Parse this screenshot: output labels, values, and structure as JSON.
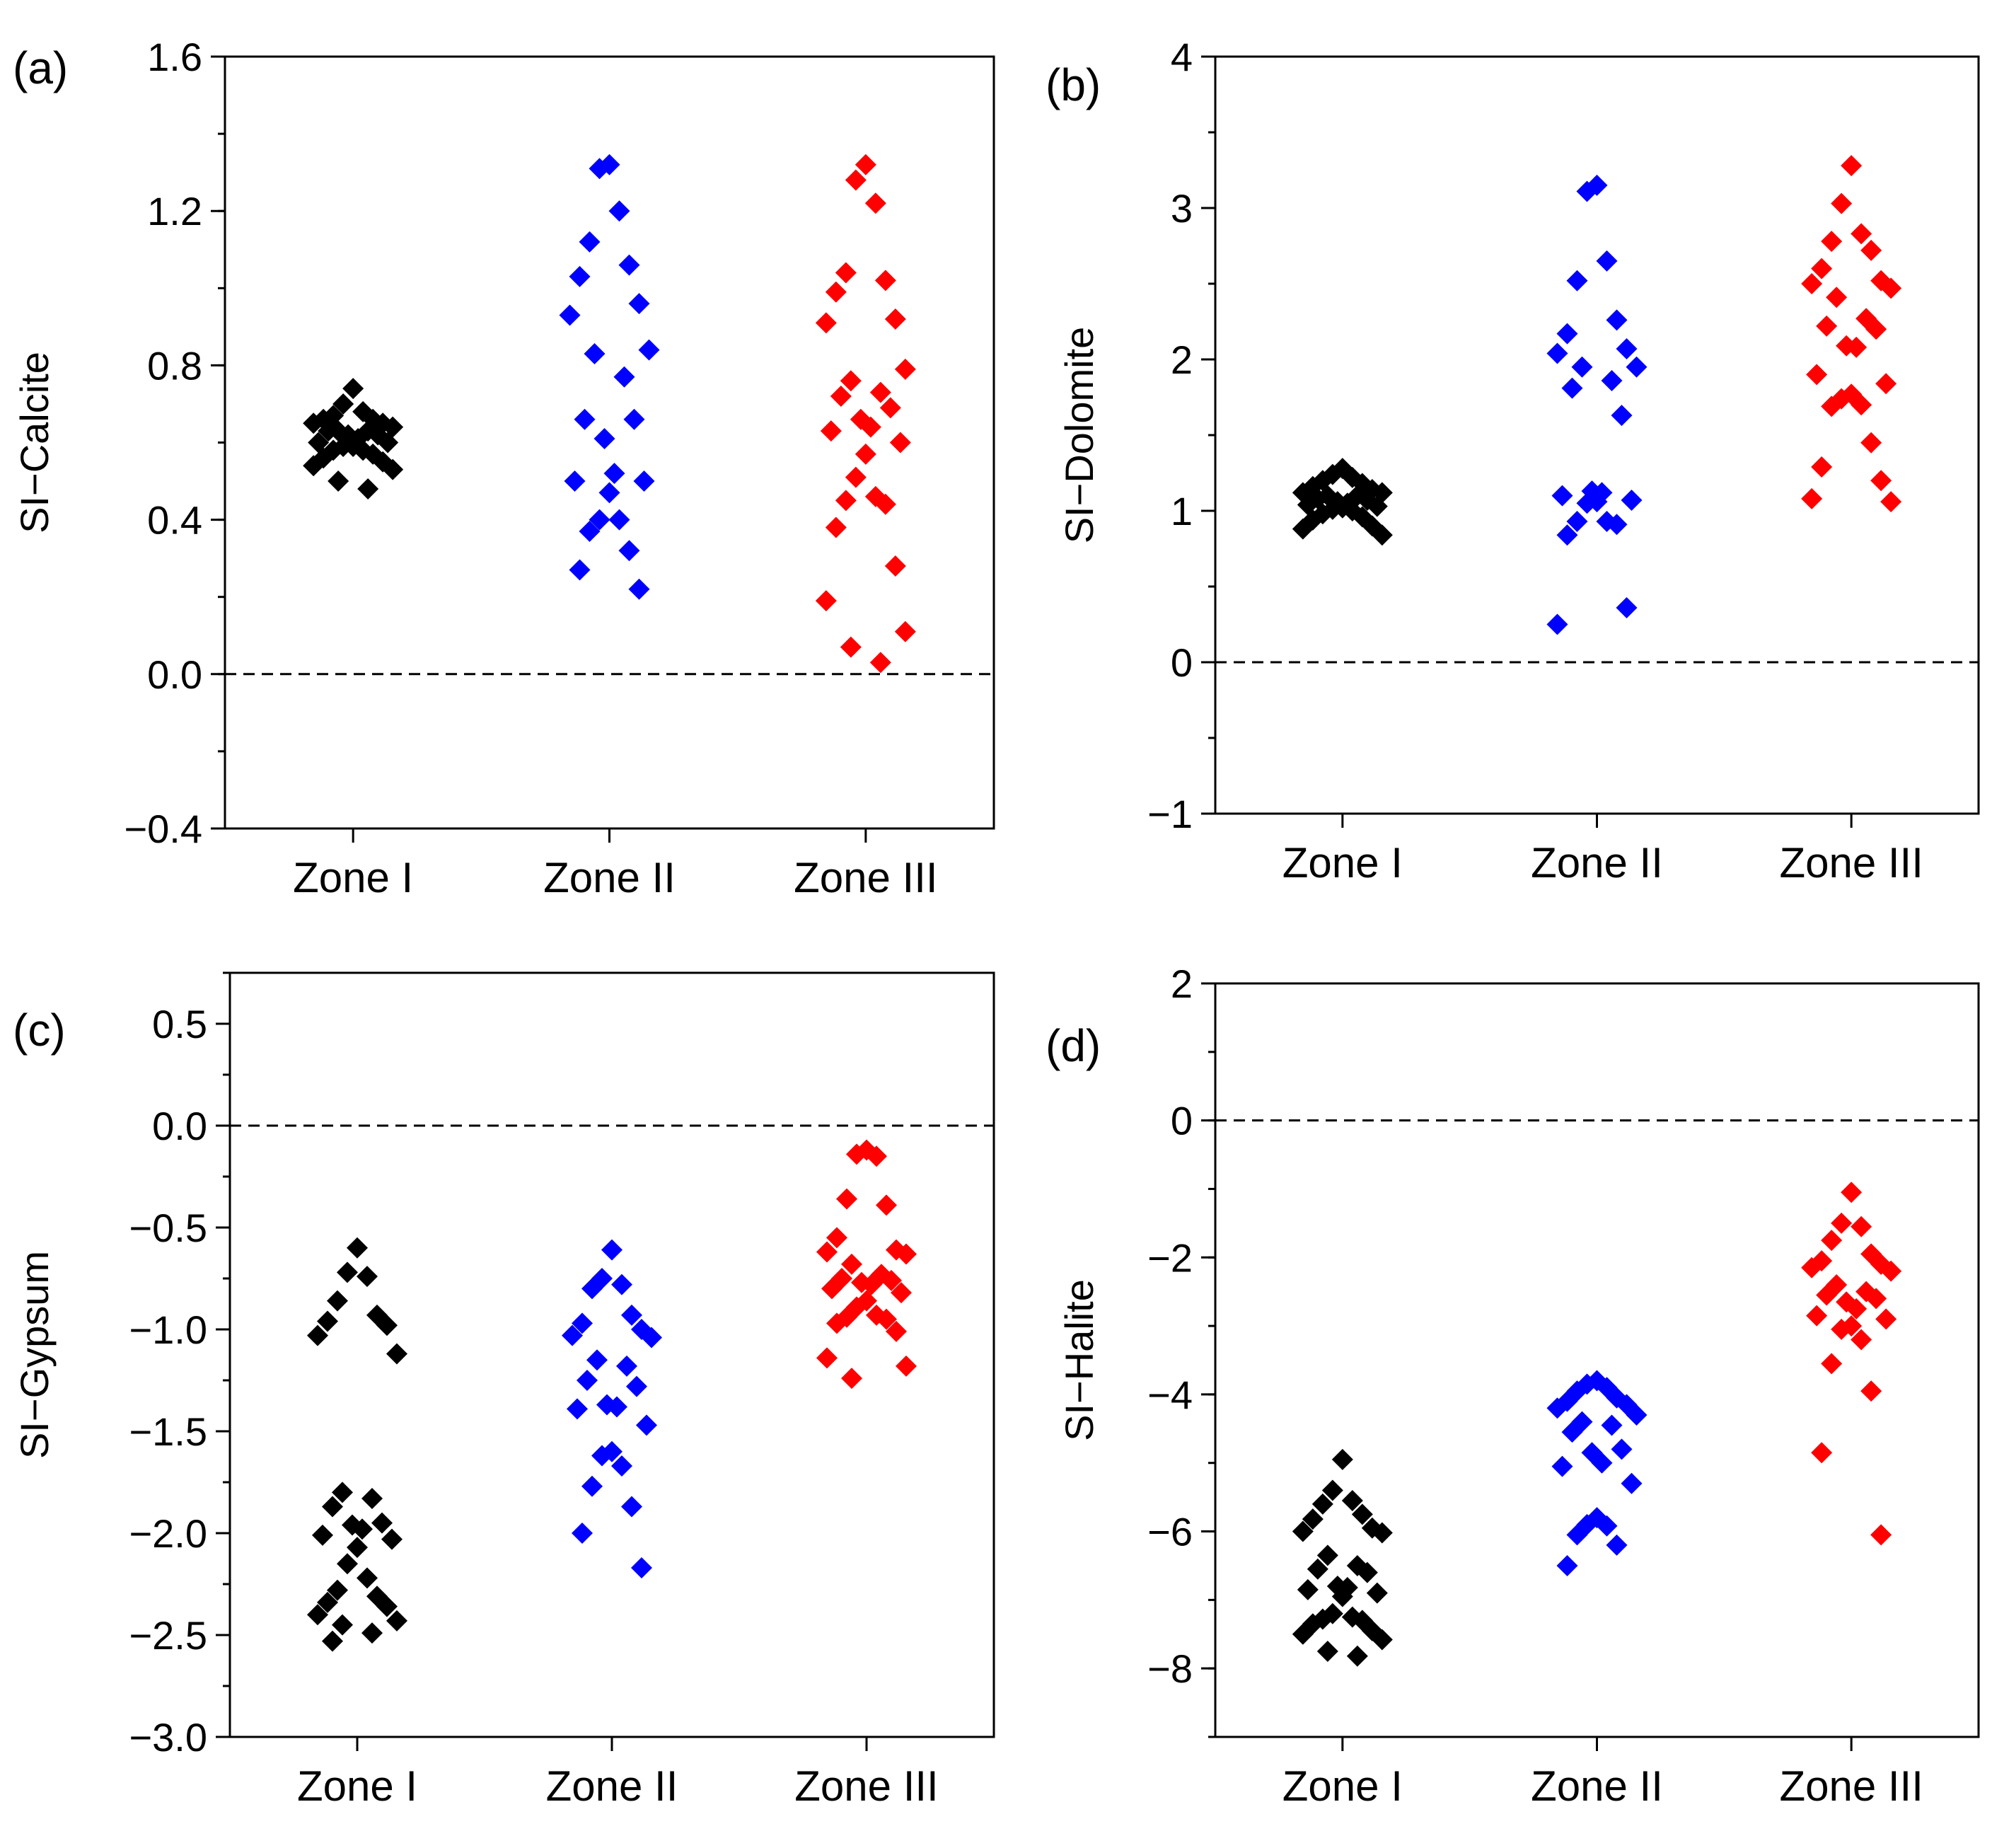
{
  "chart_data": [
    {
      "type": "scatter",
      "panel_label": "(a)",
      "title": "",
      "xlabel": "",
      "ylabel": "SI−Calcite",
      "ylim": [
        -0.4,
        1.6
      ],
      "yticks": [
        -0.4,
        0.0,
        0.4,
        0.8,
        1.2,
        1.6
      ],
      "ytick_labels": [
        "−0.4",
        "0.0",
        "0.4",
        "0.8",
        "1.2",
        "1.6"
      ],
      "ytick_minor_step": 0.2,
      "reference_line": 0,
      "categories": [
        "Zone I",
        "Zone II",
        "Zone III"
      ],
      "colors": [
        "#000000",
        "#0000ff",
        "#ff0000"
      ],
      "series": [
        {
          "name": "Zone I",
          "values": [
            0.74,
            0.7,
            0.68,
            0.67,
            0.66,
            0.66,
            0.65,
            0.65,
            0.64,
            0.63,
            0.63,
            0.63,
            0.62,
            0.62,
            0.61,
            0.6,
            0.6,
            0.59,
            0.59,
            0.58,
            0.58,
            0.57,
            0.56,
            0.55,
            0.54,
            0.53,
            0.5,
            0.48
          ]
        },
        {
          "name": "Zone II",
          "values": [
            1.32,
            1.31,
            1.2,
            1.12,
            1.06,
            1.03,
            0.96,
            0.93,
            0.84,
            0.83,
            0.77,
            0.66,
            0.66,
            0.61,
            0.52,
            0.5,
            0.5,
            0.47,
            0.4,
            0.4,
            0.37,
            0.32,
            0.27,
            0.22
          ]
        },
        {
          "name": "Zone III",
          "values": [
            1.32,
            1.28,
            1.22,
            1.04,
            1.02,
            0.99,
            0.92,
            0.91,
            0.79,
            0.76,
            0.73,
            0.72,
            0.69,
            0.66,
            0.64,
            0.63,
            0.6,
            0.57,
            0.51,
            0.46,
            0.45,
            0.44,
            0.38,
            0.28,
            0.19,
            0.11,
            0.07,
            0.03
          ]
        }
      ]
    },
    {
      "type": "scatter",
      "panel_label": "(b)",
      "title": "",
      "xlabel": "",
      "ylabel": "SI−Dolomite",
      "ylim": [
        -1,
        4
      ],
      "yticks": [
        -1,
        0,
        1,
        2,
        3,
        4
      ],
      "ytick_labels": [
        "−1",
        "0",
        "1",
        "2",
        "3",
        "4"
      ],
      "ytick_minor_step": 0.5,
      "reference_line": 0,
      "categories": [
        "Zone I",
        "Zone II",
        "Zone III"
      ],
      "colors": [
        "#000000",
        "#0000ff",
        "#ff0000"
      ],
      "series": [
        {
          "name": "Zone I",
          "values": [
            1.28,
            1.24,
            1.22,
            1.2,
            1.18,
            1.16,
            1.14,
            1.12,
            1.12,
            1.1,
            1.1,
            1.08,
            1.07,
            1.06,
            1.05,
            1.04,
            1.03,
            1.02,
            1.01,
            1.0,
            0.98,
            0.96,
            0.94,
            0.9,
            0.88,
            0.84
          ]
        },
        {
          "name": "Zone II",
          "values": [
            3.15,
            3.11,
            2.65,
            2.52,
            2.26,
            2.17,
            2.07,
            2.04,
            1.95,
            1.95,
            1.86,
            1.81,
            1.63,
            1.13,
            1.12,
            1.1,
            1.07,
            1.06,
            1.05,
            0.93,
            0.93,
            0.91,
            0.84,
            0.36,
            0.25
          ]
        },
        {
          "name": "Zone III",
          "values": [
            3.28,
            3.03,
            2.83,
            2.78,
            2.72,
            2.6,
            2.52,
            2.5,
            2.47,
            2.41,
            2.27,
            2.22,
            2.2,
            2.09,
            2.08,
            1.9,
            1.84,
            1.77,
            1.74,
            1.7,
            1.69,
            1.45,
            1.29,
            1.2,
            1.08,
            1.06
          ]
        }
      ]
    },
    {
      "type": "scatter",
      "panel_label": "(c)",
      "title": "",
      "xlabel": "",
      "ylabel": "SI−Gypsum",
      "ylim": [
        -3.0,
        0.75
      ],
      "yticks": [
        -3.0,
        -2.5,
        -2.0,
        -1.5,
        -1.0,
        -0.5,
        0.0,
        0.5
      ],
      "ytick_labels": [
        "−3.0",
        "−2.5",
        "−2.0",
        "−1.5",
        "−1.0",
        "−0.5",
        "0.0",
        "0.5"
      ],
      "ytick_minor_step": 0.25,
      "reference_line": 0,
      "categories": [
        "Zone I",
        "Zone II",
        "Zone III"
      ],
      "colors": [
        "#000000",
        "#0000ff",
        "#ff0000"
      ],
      "series": [
        {
          "name": "Zone I",
          "values": [
            -0.6,
            -0.72,
            -0.74,
            -0.86,
            -0.93,
            -0.96,
            -0.98,
            -1.03,
            -1.12,
            -1.8,
            -1.83,
            -1.87,
            -1.95,
            -1.96,
            -1.98,
            -2.01,
            -2.03,
            -2.07,
            -2.15,
            -2.22,
            -2.28,
            -2.31,
            -2.34,
            -2.36,
            -2.4,
            -2.43,
            -2.45,
            -2.49,
            -2.53
          ]
        },
        {
          "name": "Zone II",
          "values": [
            -0.61,
            -0.75,
            -0.78,
            -0.8,
            -0.93,
            -0.97,
            -1.0,
            -1.03,
            -1.04,
            -1.15,
            -1.18,
            -1.25,
            -1.28,
            -1.37,
            -1.38,
            -1.39,
            -1.47,
            -1.6,
            -1.62,
            -1.67,
            -1.77,
            -1.87,
            -2.0,
            -2.17
          ]
        },
        {
          "name": "Zone III",
          "values": [
            -0.12,
            -0.14,
            -0.15,
            -0.36,
            -0.39,
            -0.55,
            -0.61,
            -0.62,
            -0.63,
            -0.68,
            -0.73,
            -0.75,
            -0.76,
            -0.77,
            -0.78,
            -0.8,
            -0.82,
            -0.86,
            -0.89,
            -0.93,
            -0.94,
            -0.95,
            -0.97,
            -1.01,
            -1.14,
            -1.18,
            -1.24
          ]
        }
      ]
    },
    {
      "type": "scatter",
      "panel_label": "(d)",
      "title": "",
      "xlabel": "",
      "ylabel": "SI−Halite",
      "ylim": [
        -9,
        2
      ],
      "yticks": [
        -8,
        -6,
        -4,
        -2,
        0,
        2
      ],
      "ytick_labels": [
        "−8",
        "−6",
        "−4",
        "−2",
        "0",
        "2"
      ],
      "ytick_minor_step": 1,
      "reference_line": 0,
      "categories": [
        "Zone I",
        "Zone II",
        "Zone III"
      ],
      "colors": [
        "#000000",
        "#0000ff",
        "#ff0000"
      ],
      "series": [
        {
          "name": "Zone I",
          "values": [
            -4.95,
            -5.4,
            -5.55,
            -5.6,
            -5.75,
            -5.82,
            -5.95,
            -6.0,
            -6.02,
            -6.35,
            -6.5,
            -6.55,
            -6.6,
            -6.8,
            -6.82,
            -6.85,
            -6.9,
            -6.95,
            -7.2,
            -7.25,
            -7.28,
            -7.3,
            -7.35,
            -7.45,
            -7.5,
            -7.58,
            -7.75,
            -7.82
          ]
        },
        {
          "name": "Zone II",
          "values": [
            -3.8,
            -3.85,
            -3.9,
            -3.95,
            -4.05,
            -4.1,
            -4.15,
            -4.2,
            -4.3,
            -4.4,
            -4.45,
            -4.55,
            -4.8,
            -4.85,
            -5.0,
            -5.05,
            -5.3,
            -5.8,
            -5.9,
            -5.92,
            -6.05,
            -6.2,
            -6.5
          ]
        },
        {
          "name": "Zone III",
          "values": [
            -1.05,
            -1.5,
            -1.55,
            -1.75,
            -1.95,
            -2.05,
            -2.1,
            -2.15,
            -2.2,
            -2.4,
            -2.5,
            -2.55,
            -2.6,
            -2.65,
            -2.75,
            -2.85,
            -2.9,
            -3.0,
            -3.05,
            -3.2,
            -3.55,
            -3.95,
            -4.85,
            -6.05
          ]
        }
      ]
    }
  ]
}
